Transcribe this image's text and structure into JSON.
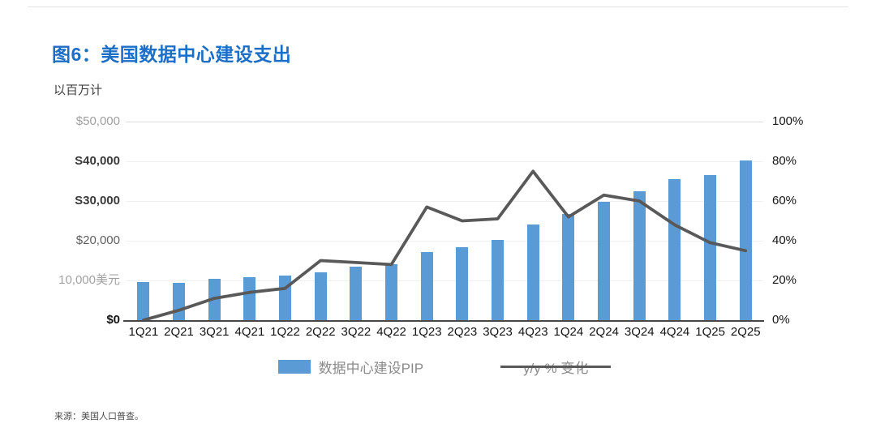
{
  "header": {
    "figure_title": "图6：美国数据中心建设支出",
    "units_label": "以百万计"
  },
  "chart_data": {
    "type": "bar",
    "combo": "bar+line",
    "title": "图6：美国数据中心建设支出",
    "subtitle": "以百万计",
    "grid": false,
    "legend_position": "bottom",
    "categories": [
      "1Q21",
      "2Q21",
      "3Q21",
      "4Q21",
      "1Q22",
      "2Q22",
      "3Q22",
      "4Q22",
      "1Q23",
      "2Q23",
      "3Q23",
      "4Q23",
      "1Q24",
      "2Q24",
      "3Q24",
      "4Q24",
      "1Q25",
      "2Q25"
    ],
    "series": [
      {
        "name": "数据中心建设PIP",
        "type": "bar",
        "axis": "left",
        "color": "#5b9bd5",
        "values": [
          9600,
          9400,
          10400,
          10800,
          11200,
          12100,
          13500,
          14100,
          17200,
          18300,
          20300,
          24100,
          26700,
          29900,
          32400,
          35500,
          36600,
          40300
        ]
      },
      {
        "name": "y/y % 变化",
        "type": "line",
        "axis": "right",
        "color": "#595959",
        "values": [
          0,
          5,
          11,
          14,
          16,
          30,
          29,
          28,
          57,
          50,
          51,
          75,
          52,
          63,
          60,
          48,
          39,
          35
        ]
      }
    ],
    "left_axis": {
      "ticks": [
        "$50,000",
        "S40,000",
        "S30,000",
        "$20,000",
        "10,000美元",
        "$0"
      ],
      "min": 0,
      "max": 50000
    },
    "right_axis": {
      "ticks": [
        "100%",
        "80%",
        "60%",
        "40%",
        "20%",
        "0%"
      ],
      "min": 0,
      "max": 100
    }
  },
  "colors": {
    "title_blue": "#1c6ec6",
    "bar_blue": "#5b9bd5",
    "line_gray": "#595959"
  },
  "footer": {
    "source": "来源：美国人口普查。"
  }
}
